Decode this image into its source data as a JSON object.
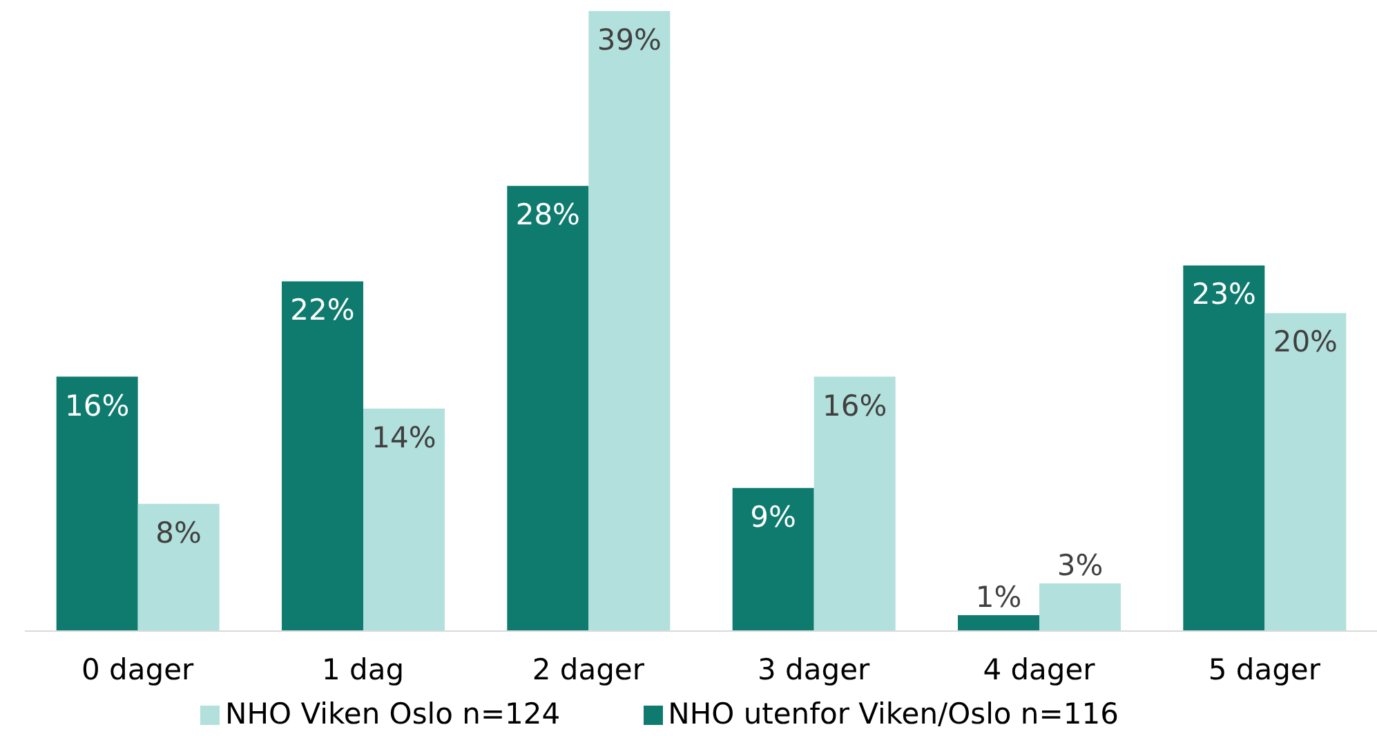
{
  "chart_data": {
    "type": "bar",
    "categories": [
      "0 dager",
      "1 dag",
      "2 dager",
      "3 dager",
      "4 dager",
      "5 dager"
    ],
    "series": [
      {
        "name": "NHO utenfor Viken/Oslo n=116",
        "color": "#0e7b6e",
        "values": [
          16,
          22,
          28,
          9,
          1,
          23
        ],
        "value_labels": [
          "16%",
          "22%",
          "28%",
          "9%",
          "1%",
          "23%"
        ]
      },
      {
        "name": "NHO Viken Oslo n=124",
        "color": "#b2e0dc",
        "values": [
          8,
          14,
          39,
          16,
          3,
          20
        ],
        "value_labels": [
          "8%",
          "14%",
          "39%",
          "16%",
          "3%",
          "20%"
        ]
      }
    ],
    "legend": "bottom",
    "grid": false
  }
}
